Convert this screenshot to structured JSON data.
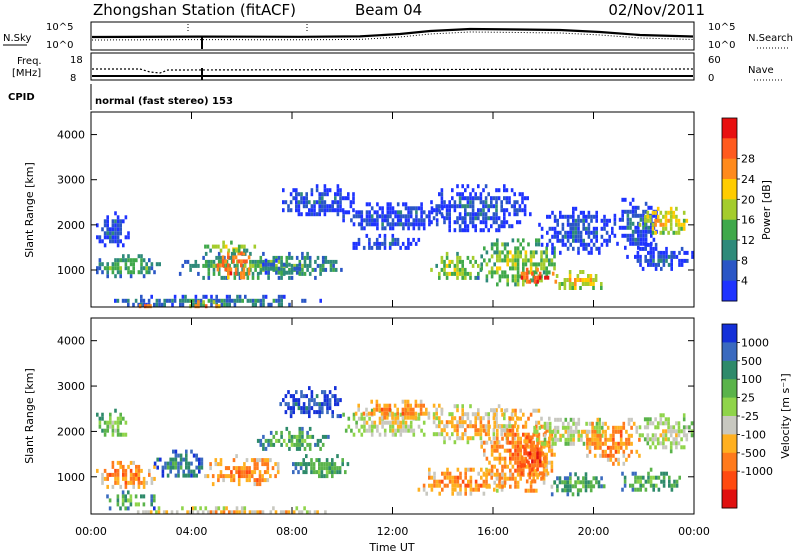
{
  "header": {
    "title": "Zhongshan Station (fitACF)",
    "beam": "Beam 04",
    "date": "02/Nov/2011"
  },
  "status_panels": {
    "nsky_label": "N.Sky",
    "nsearch_label": "N.Search",
    "nsky_ticks": [
      "10^5",
      "10^0"
    ],
    "nsearch_ticks": [
      "10^5",
      "10^0"
    ],
    "freq_label_1": "Freq.",
    "freq_label_2": "[MHz]",
    "freq_ticks": [
      "18",
      "8"
    ],
    "nave_label": "Nave",
    "nave_ticks": [
      "60",
      "0"
    ],
    "cpid_label": "CPID",
    "cpid_value": "normal (fast stereo) 153"
  },
  "chart_data": [
    {
      "type": "heatmap",
      "panel": "power",
      "ylabel": "Slant Range [km]",
      "xlabel": "",
      "ylim": [
        180,
        4500
      ],
      "xlim": [
        0,
        24
      ],
      "x_ticks": [
        0,
        4,
        8,
        12,
        16,
        20,
        24
      ],
      "y_ticks": [
        1000,
        2000,
        3000,
        4000
      ],
      "colorbar": {
        "label": "Power [dB]",
        "ticks": [
          "4",
          "8",
          "12",
          "16",
          "20",
          "24",
          "28"
        ],
        "colors": [
          "#1e33ff",
          "#2a56c6",
          "#2e8a7a",
          "#3fa84a",
          "#a4cc2c",
          "#ffcc00",
          "#ff8a1c",
          "#ff5a1e",
          "#e81010"
        ]
      },
      "echo_regions": [
        {
          "t0": 0.2,
          "t1": 1.5,
          "r0": 1550,
          "r1": 2300,
          "level": 1
        },
        {
          "t0": 0.2,
          "t1": 2.7,
          "r0": 900,
          "r1": 1350,
          "level": 3
        },
        {
          "t0": 0.5,
          "t1": 9.5,
          "r0": 220,
          "r1": 450,
          "level": 2
        },
        {
          "t0": 1.8,
          "t1": 2.4,
          "r0": 200,
          "r1": 330,
          "level": 6
        },
        {
          "t0": 3.5,
          "t1": 5.2,
          "r0": 200,
          "r1": 330,
          "level": 6
        },
        {
          "t0": 3.5,
          "t1": 10.0,
          "r0": 850,
          "r1": 1400,
          "level": 3
        },
        {
          "t0": 5.0,
          "t1": 6.3,
          "r0": 800,
          "r1": 1500,
          "level": 7
        },
        {
          "t0": 4.5,
          "t1": 6.5,
          "r0": 1450,
          "r1": 1650,
          "level": 4
        },
        {
          "t0": 6.5,
          "t1": 8.5,
          "r0": 900,
          "r1": 1250,
          "level": 2
        },
        {
          "t0": 7.5,
          "t1": 10.5,
          "r0": 2200,
          "r1": 2900,
          "level": 1
        },
        {
          "t0": 10.0,
          "t1": 14.0,
          "r0": 1900,
          "r1": 2500,
          "level": 1
        },
        {
          "t0": 13.5,
          "t1": 17.5,
          "r0": 1900,
          "r1": 2900,
          "level": 1
        },
        {
          "t0": 10.2,
          "t1": 13.0,
          "r0": 1500,
          "r1": 1800,
          "level": 1
        },
        {
          "t0": 13.5,
          "t1": 15.5,
          "r0": 800,
          "r1": 1400,
          "level": 4
        },
        {
          "t0": 15.5,
          "t1": 18.5,
          "r0": 650,
          "r1": 1700,
          "level": 4
        },
        {
          "t0": 17.0,
          "t1": 18.5,
          "r0": 700,
          "r1": 1050,
          "level": 8
        },
        {
          "t0": 18.5,
          "t1": 20.3,
          "r0": 600,
          "r1": 1000,
          "level": 5
        },
        {
          "t0": 17.8,
          "t1": 20.8,
          "r0": 1400,
          "r1": 2400,
          "level": 1
        },
        {
          "t0": 20.8,
          "t1": 22.5,
          "r0": 1500,
          "r1": 2600,
          "level": 1
        },
        {
          "t0": 21.8,
          "t1": 23.7,
          "r0": 1800,
          "r1": 2400,
          "level": 5
        },
        {
          "t0": 21.3,
          "t1": 23.9,
          "r0": 1000,
          "r1": 1600,
          "level": 1
        }
      ]
    },
    {
      "type": "heatmap",
      "panel": "velocity",
      "ylabel": "Slant Range [km]",
      "xlabel": "Time UT",
      "ylim": [
        180,
        4500
      ],
      "xlim": [
        0,
        24
      ],
      "x_ticks": [
        0,
        4,
        8,
        12,
        16,
        20,
        24
      ],
      "x_tick_labels": [
        "00:00",
        "04:00",
        "08:00",
        "12:00",
        "16:00",
        "20:00",
        "00:00"
      ],
      "y_ticks": [
        1000,
        2000,
        3000,
        4000
      ],
      "colorbar": {
        "label": "Velocity [m s⁻¹]",
        "ticks": [
          "1000",
          "500",
          "100",
          "25",
          "-25",
          "-100",
          "-500",
          "-1000"
        ],
        "colors": [
          "#1430d8",
          "#3a6abf",
          "#2e8a6a",
          "#5ab34a",
          "#8fd44a",
          "#c8c8c0",
          "#ffb020",
          "#ff7a1c",
          "#ff4a10",
          "#e01010"
        ]
      },
      "echo_regions": [
        {
          "t0": 0.2,
          "t1": 1.5,
          "r0": 1900,
          "r1": 2500,
          "level": 4
        },
        {
          "t0": 0.2,
          "t1": 2.5,
          "r0": 800,
          "r1": 1350,
          "level": 7
        },
        {
          "t0": 0.5,
          "t1": 2.5,
          "r0": 300,
          "r1": 700,
          "level": 3
        },
        {
          "t0": 1.0,
          "t1": 9.5,
          "r0": 200,
          "r1": 350,
          "level": 6
        },
        {
          "t0": 2.5,
          "t1": 4.5,
          "r0": 1000,
          "r1": 1600,
          "level": 2
        },
        {
          "t0": 4.5,
          "t1": 7.5,
          "r0": 800,
          "r1": 1500,
          "level": 7
        },
        {
          "t0": 6.5,
          "t1": 9.5,
          "r0": 1600,
          "r1": 2100,
          "level": 3
        },
        {
          "t0": 7.5,
          "t1": 10.0,
          "r0": 2300,
          "r1": 3000,
          "level": 1
        },
        {
          "t0": 8.0,
          "t1": 10.2,
          "r0": 1000,
          "r1": 1500,
          "level": 3
        },
        {
          "t0": 10.0,
          "t1": 13.5,
          "r0": 1900,
          "r1": 2500,
          "level": 5
        },
        {
          "t0": 10.5,
          "t1": 14.0,
          "r0": 2300,
          "r1": 2700,
          "level": 7
        },
        {
          "t0": 13.5,
          "t1": 17.0,
          "r0": 1800,
          "r1": 2600,
          "level": 6
        },
        {
          "t0": 13.0,
          "t1": 16.5,
          "r0": 650,
          "r1": 1200,
          "level": 7
        },
        {
          "t0": 15.5,
          "t1": 18.5,
          "r0": 700,
          "r1": 2500,
          "level": 7
        },
        {
          "t0": 17.0,
          "t1": 18.2,
          "r0": 900,
          "r1": 2000,
          "level": 8
        },
        {
          "t0": 18.2,
          "t1": 20.5,
          "r0": 600,
          "r1": 1100,
          "level": 3
        },
        {
          "t0": 17.5,
          "t1": 20.5,
          "r0": 1700,
          "r1": 2300,
          "level": 5
        },
        {
          "t0": 19.5,
          "t1": 21.8,
          "r0": 1300,
          "r1": 2300,
          "level": 7
        },
        {
          "t0": 21.8,
          "t1": 24.0,
          "r0": 1600,
          "r1": 2400,
          "level": 5
        },
        {
          "t0": 21.0,
          "t1": 23.5,
          "r0": 700,
          "r1": 1200,
          "level": 3
        }
      ]
    }
  ]
}
